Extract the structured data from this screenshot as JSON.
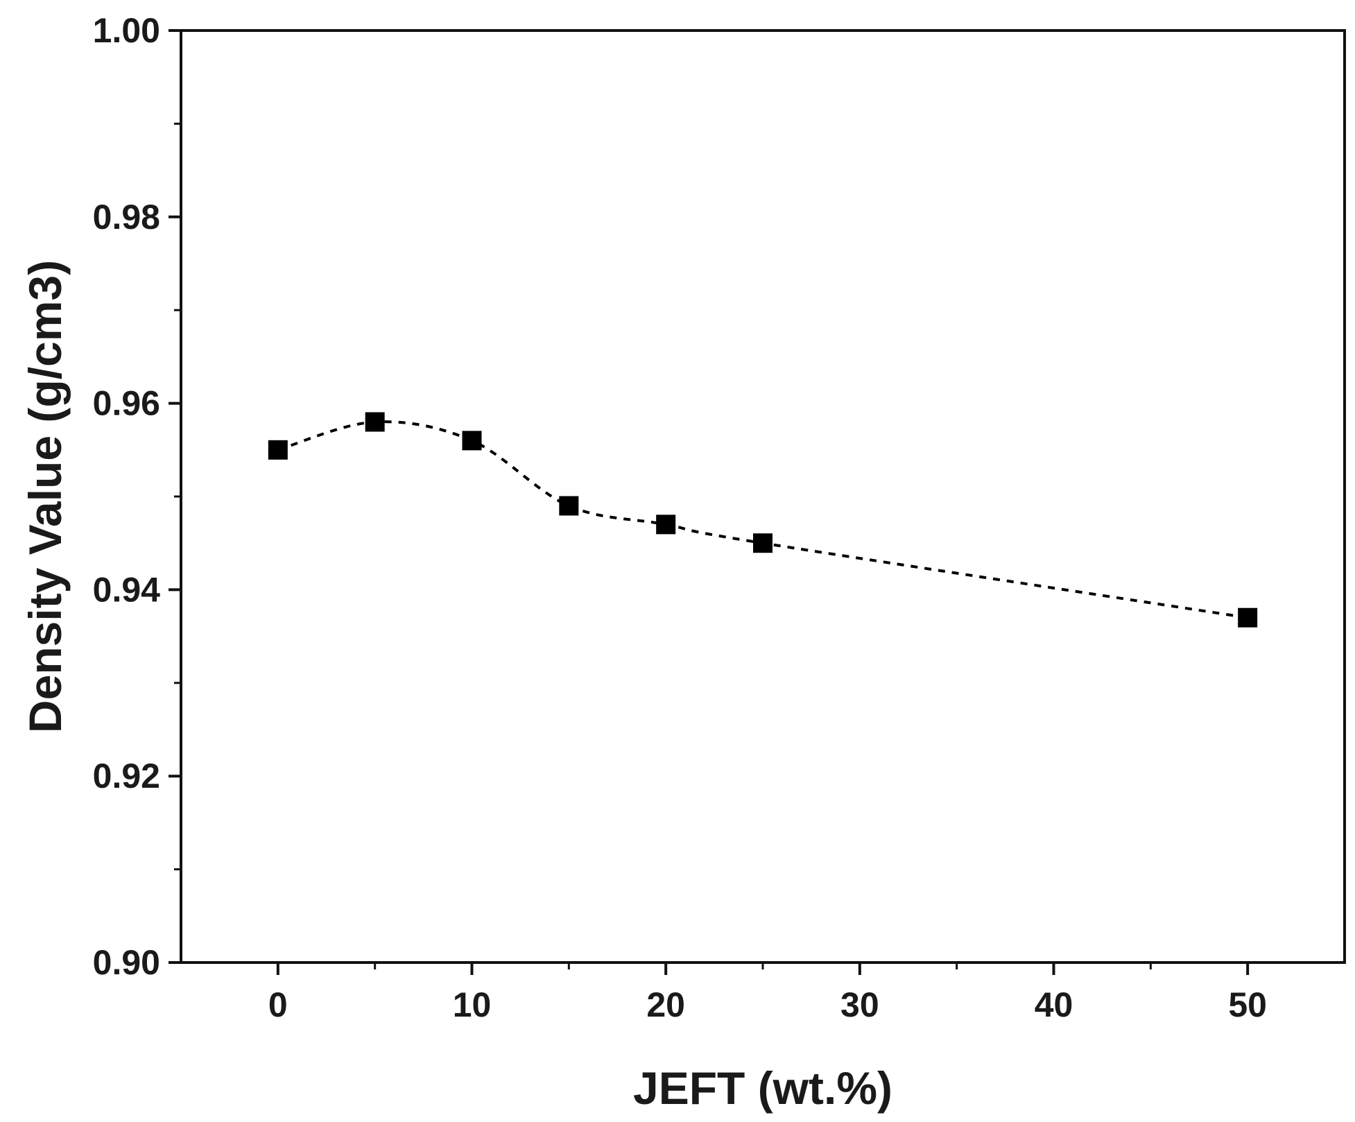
{
  "chart_data": {
    "type": "scatter",
    "title": "",
    "xlabel": "JEFT (wt.%)",
    "ylabel": "Density Value (g/cm3)",
    "xlim": [
      -5,
      55
    ],
    "ylim": [
      0.9,
      1.0
    ],
    "x_ticks": [
      0,
      10,
      20,
      30,
      40,
      50
    ],
    "x_tick_labels": [
      "0",
      "10",
      "20",
      "30",
      "40",
      "50"
    ],
    "y_ticks": [
      0.9,
      0.92,
      0.94,
      0.96,
      0.98,
      1.0
    ],
    "y_tick_labels": [
      "0.90",
      "0.92",
      "0.94",
      "0.96",
      "0.98",
      "1.00"
    ],
    "grid": false,
    "legend": "none",
    "series": [
      {
        "marker": "square",
        "line_style": "dashed smooth",
        "color": "#000000",
        "points": [
          {
            "x": 0,
            "y": 0.955
          },
          {
            "x": 5,
            "y": 0.958
          },
          {
            "x": 10,
            "y": 0.956
          },
          {
            "x": 15,
            "y": 0.949
          },
          {
            "x": 20,
            "y": 0.947
          },
          {
            "x": 25,
            "y": 0.945
          },
          {
            "x": 50,
            "y": 0.937
          }
        ]
      }
    ]
  }
}
